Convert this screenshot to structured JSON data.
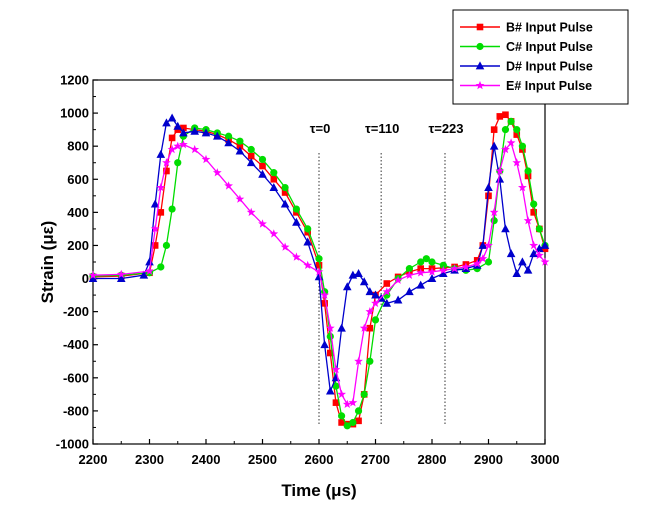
{
  "chart_data": {
    "type": "line",
    "title": "",
    "xlabel": "Time (μs)",
    "ylabel": "Strain (με)",
    "xlim": [
      2200,
      3000
    ],
    "ylim": [
      -1000,
      1200
    ],
    "xticks": [
      2200,
      2300,
      2400,
      2500,
      2600,
      2700,
      2800,
      2900,
      3000
    ],
    "yticks": [
      -1000,
      -800,
      -600,
      -400,
      -200,
      0,
      200,
      400,
      600,
      800,
      1000,
      1200
    ],
    "legend_position": "top-right",
    "annotations": [
      {
        "label": "τ=0",
        "x": 2600
      },
      {
        "label": "τ=110",
        "x": 2710
      },
      {
        "label": "τ=223",
        "x": 2823
      }
    ],
    "series": [
      {
        "name": "B# Input Pulse",
        "color": "#ff0000",
        "marker": "square",
        "x": [
          2200,
          2250,
          2300,
          2310,
          2320,
          2330,
          2340,
          2350,
          2360,
          2380,
          2400,
          2420,
          2440,
          2460,
          2480,
          2500,
          2520,
          2540,
          2560,
          2580,
          2600,
          2610,
          2620,
          2630,
          2640,
          2650,
          2660,
          2670,
          2680,
          2690,
          2700,
          2720,
          2740,
          2760,
          2780,
          2800,
          2820,
          2840,
          2860,
          2880,
          2890,
          2900,
          2910,
          2920,
          2930,
          2940,
          2950,
          2960,
          2970,
          2980,
          2990,
          3000
        ],
        "values": [
          10,
          15,
          35,
          200,
          400,
          650,
          850,
          900,
          910,
          900,
          890,
          870,
          840,
          800,
          740,
          680,
          600,
          520,
          400,
          280,
          80,
          -150,
          -450,
          -750,
          -870,
          -880,
          -880,
          -860,
          -700,
          -300,
          -100,
          -30,
          10,
          40,
          60,
          60,
          65,
          70,
          85,
          110,
          200,
          500,
          900,
          980,
          990,
          950,
          870,
          780,
          620,
          400,
          300,
          180
        ]
      },
      {
        "name": "C# Input Pulse",
        "color": "#00dd00",
        "marker": "circle",
        "x": [
          2200,
          2250,
          2300,
          2320,
          2330,
          2340,
          2350,
          2360,
          2380,
          2400,
          2420,
          2440,
          2460,
          2480,
          2500,
          2520,
          2540,
          2560,
          2580,
          2600,
          2610,
          2620,
          2630,
          2640,
          2650,
          2660,
          2670,
          2680,
          2690,
          2700,
          2720,
          2740,
          2760,
          2780,
          2790,
          2800,
          2820,
          2840,
          2860,
          2880,
          2900,
          2910,
          2920,
          2930,
          2940,
          2950,
          2960,
          2970,
          2980,
          2990,
          3000
        ],
        "values": [
          15,
          20,
          35,
          70,
          200,
          420,
          700,
          860,
          910,
          900,
          880,
          860,
          830,
          780,
          720,
          640,
          550,
          420,
          300,
          120,
          -80,
          -350,
          -650,
          -830,
          -890,
          -870,
          -800,
          -700,
          -500,
          -250,
          -100,
          0,
          60,
          100,
          120,
          100,
          80,
          60,
          50,
          60,
          100,
          350,
          650,
          900,
          950,
          900,
          800,
          650,
          450,
          300,
          200
        ]
      },
      {
        "name": "D# Input Pulse",
        "color": "#0000cc",
        "marker": "triangle",
        "x": [
          2200,
          2250,
          2290,
          2300,
          2310,
          2320,
          2330,
          2340,
          2350,
          2360,
          2380,
          2400,
          2420,
          2440,
          2460,
          2480,
          2500,
          2520,
          2540,
          2560,
          2580,
          2600,
          2610,
          2620,
          2630,
          2640,
          2650,
          2660,
          2670,
          2680,
          2690,
          2700,
          2710,
          2720,
          2740,
          2760,
          2780,
          2800,
          2820,
          2840,
          2860,
          2880,
          2890,
          2900,
          2910,
          2920,
          2930,
          2940,
          2950,
          2960,
          2970,
          2980,
          2990,
          3000
        ],
        "values": [
          0,
          0,
          20,
          100,
          450,
          750,
          940,
          970,
          920,
          880,
          890,
          880,
          860,
          820,
          770,
          700,
          630,
          550,
          450,
          340,
          220,
          10,
          -400,
          -680,
          -600,
          -300,
          -50,
          20,
          30,
          -20,
          -80,
          -100,
          -120,
          -150,
          -130,
          -80,
          -40,
          0,
          30,
          50,
          60,
          80,
          200,
          550,
          800,
          600,
          300,
          150,
          30,
          100,
          50,
          150,
          180,
          200
        ]
      },
      {
        "name": "E# Input Pulse",
        "color": "#ff00ff",
        "marker": "star",
        "x": [
          2200,
          2250,
          2300,
          2310,
          2320,
          2330,
          2340,
          2350,
          2360,
          2380,
          2400,
          2420,
          2440,
          2460,
          2480,
          2500,
          2520,
          2540,
          2560,
          2580,
          2600,
          2610,
          2620,
          2630,
          2640,
          2650,
          2660,
          2670,
          2680,
          2690,
          2700,
          2720,
          2740,
          2760,
          2780,
          2800,
          2820,
          2840,
          2860,
          2880,
          2890,
          2900,
          2910,
          2920,
          2930,
          2940,
          2950,
          2960,
          2970,
          2980,
          2990,
          3000
        ],
        "values": [
          20,
          25,
          45,
          300,
          550,
          700,
          780,
          800,
          810,
          780,
          720,
          640,
          560,
          480,
          400,
          330,
          270,
          190,
          130,
          80,
          40,
          -100,
          -300,
          -550,
          -700,
          -760,
          -750,
          -500,
          -300,
          -200,
          -150,
          -80,
          -10,
          20,
          35,
          40,
          50,
          60,
          70,
          90,
          120,
          200,
          400,
          650,
          780,
          820,
          700,
          550,
          350,
          200,
          140,
          100
        ]
      }
    ]
  }
}
